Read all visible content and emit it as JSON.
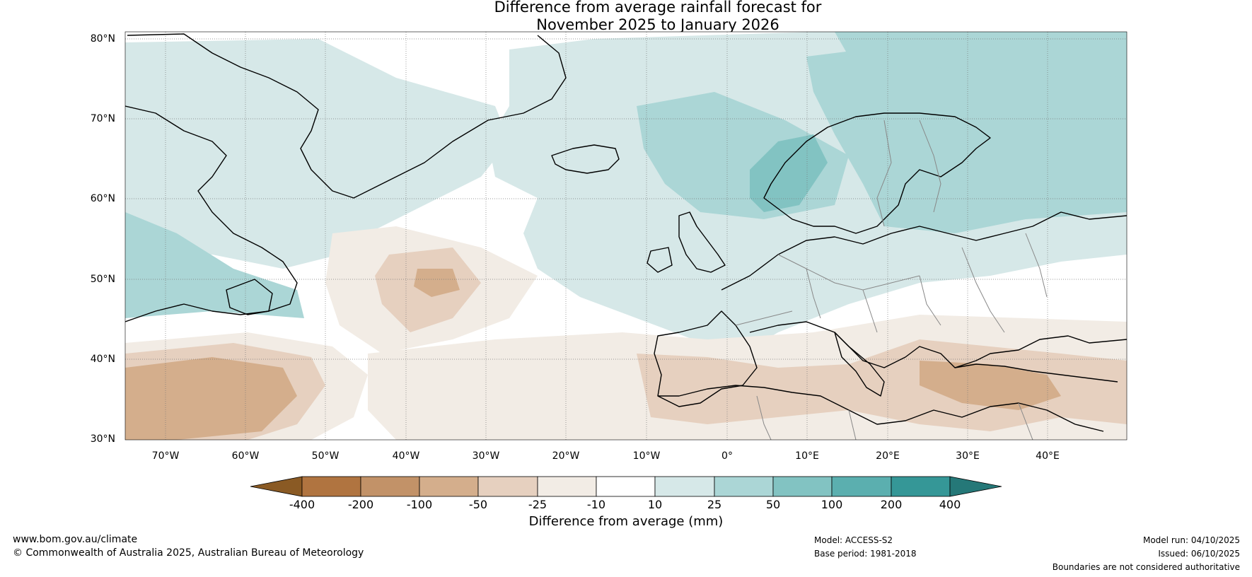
{
  "title": {
    "line1": "Difference from average rainfall forecast for",
    "line2": "November 2025 to January 2026"
  },
  "latitude_labels": [
    "80°N",
    "70°N",
    "60°N",
    "50°N",
    "40°N",
    "30°N"
  ],
  "longitude_labels": [
    "70°W",
    "60°W",
    "50°W",
    "40°W",
    "30°W",
    "20°W",
    "10°W",
    "0°",
    "10°E",
    "20°E",
    "30°E",
    "40°E"
  ],
  "colorbar": {
    "ticks": [
      "-400",
      "-200",
      "-100",
      "-50",
      "-25",
      "-10",
      "10",
      "25",
      "50",
      "100",
      "200",
      "400"
    ],
    "colors": [
      "#8a5a24",
      "#b07440",
      "#c29268",
      "#d4ae8c",
      "#e6d0bf",
      "#f2ece5",
      "#ffffff",
      "#d6e8e8",
      "#abd6d6",
      "#82c3c2",
      "#5bafaf",
      "#359797",
      "#257878"
    ],
    "label": "Difference from average (mm)"
  },
  "footer": {
    "website": "www.bom.gov.au/climate",
    "copyright": "© Commonwealth of Australia 2025, Australian Bureau of Meteorology",
    "model": "Model: ACCESS-S2",
    "base_period": "Base period: 1981-2018",
    "model_run": "Model run: 04/10/2025",
    "issued": "Issued: 06/10/2025",
    "disclaimer": "Boundaries are not considered authoritative"
  }
}
